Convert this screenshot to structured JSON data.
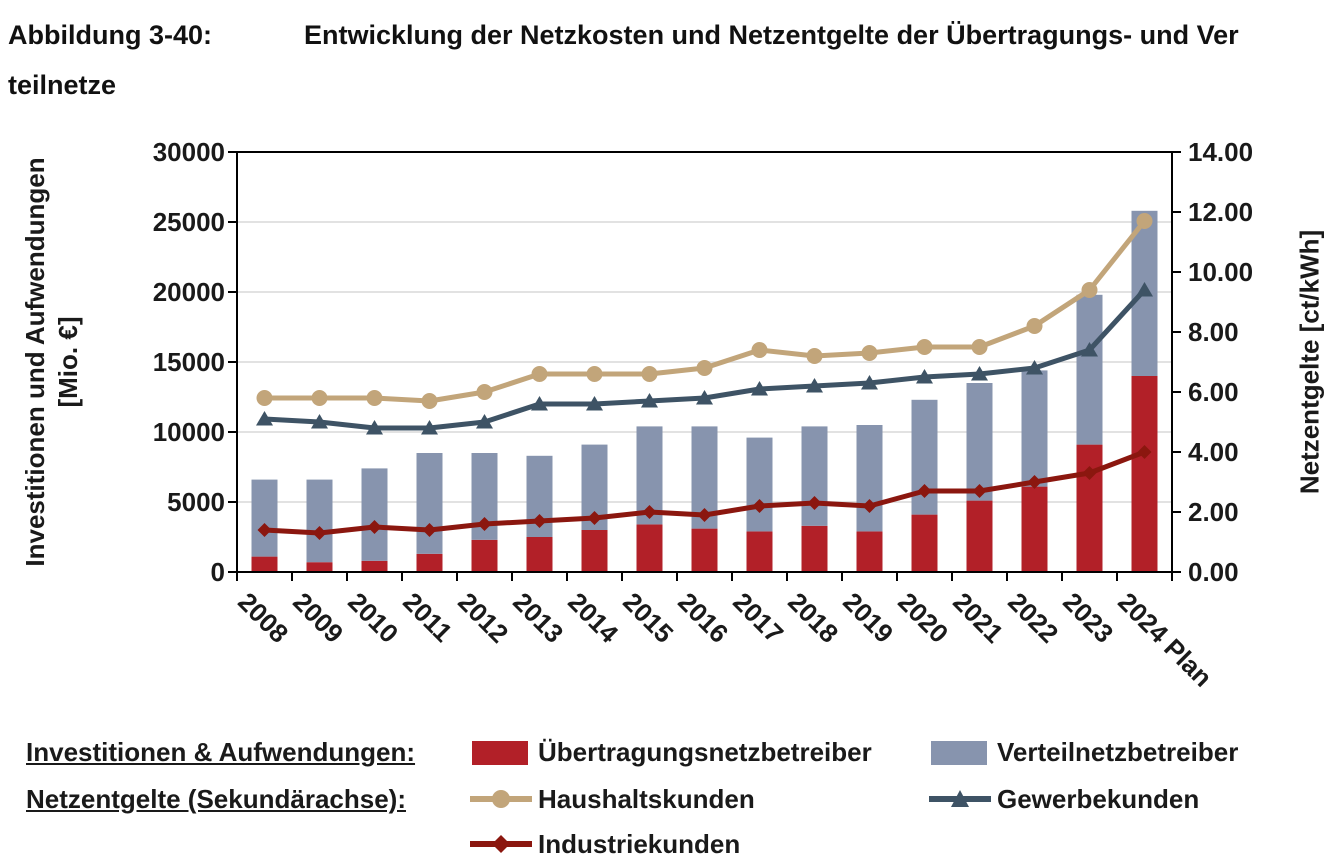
{
  "header": {
    "figure_label": "Abbildung 3-40:",
    "title_line1": "Entwicklung der Netzkosten und Netzentgelte der Übertragungs- und Ver",
    "title_line2": "teilnetze"
  },
  "legend": {
    "investments_label": "Investitionen & Aufwendungen:",
    "tariffs_label": "Netzentgelte (Sekundärachse):"
  },
  "chart_data": {
    "type": "combo: stacked bar (primary axis) + line (secondary axis)",
    "categories": [
      "2008",
      "2009",
      "2010",
      "2011",
      "2012",
      "2013",
      "2014",
      "2015",
      "2016",
      "2017",
      "2018",
      "2019",
      "2020",
      "2021",
      "2022",
      "2023",
      "2024 Plan"
    ],
    "bar_series": [
      {
        "name": "Übertragungsnetzbetreiber",
        "color": "#b22028",
        "axis": "left",
        "values": [
          1100,
          700,
          800,
          1300,
          2300,
          2500,
          3000,
          3400,
          3100,
          2900,
          3300,
          2900,
          4100,
          5100,
          6100,
          9100,
          14000
        ]
      },
      {
        "name": "Verteilnetzbetreiber",
        "color": "#8794ae",
        "axis": "left",
        "values": [
          5500,
          5900,
          6600,
          7200,
          6200,
          5800,
          6100,
          7000,
          7300,
          6700,
          7100,
          7600,
          8200,
          8400,
          8300,
          10700,
          11800
        ]
      }
    ],
    "line_series": [
      {
        "name": "Haushaltskunden",
        "color": "#c2a57a",
        "marker": "circle",
        "axis": "right",
        "values": [
          5.8,
          5.8,
          5.8,
          5.7,
          6.0,
          6.6,
          6.6,
          6.6,
          6.8,
          7.4,
          7.2,
          7.3,
          7.5,
          7.5,
          8.2,
          9.4,
          11.7
        ]
      },
      {
        "name": "Gewerbekunden",
        "color": "#3e5365",
        "marker": "triangle",
        "axis": "right",
        "values": [
          5.1,
          5.0,
          4.8,
          4.8,
          5.0,
          5.6,
          5.6,
          5.7,
          5.8,
          6.1,
          6.2,
          6.3,
          6.5,
          6.6,
          6.8,
          7.4,
          9.4
        ]
      },
      {
        "name": "Industriekunden",
        "color": "#8b170f",
        "marker": "diamond",
        "axis": "right",
        "values": [
          1.4,
          1.3,
          1.5,
          1.4,
          1.6,
          1.7,
          1.8,
          2.0,
          1.9,
          2.2,
          2.3,
          2.2,
          2.7,
          2.7,
          3.0,
          3.3,
          4.0
        ]
      }
    ],
    "left_axis": {
      "title_line1": "Investitionen und Aufwendungen",
      "title_line2": "[Mio. €]",
      "min": 0,
      "max": 30000,
      "step": 5000,
      "ticks": [
        "0",
        "5000",
        "10000",
        "15000",
        "20000",
        "25000",
        "30000"
      ]
    },
    "right_axis": {
      "title": "Netzentgelte [ct/kWh]",
      "min": 0,
      "max": 14,
      "step": 2,
      "ticks": [
        "0.00",
        "2.00",
        "4.00",
        "6.00",
        "8.00",
        "10.00",
        "12.00",
        "14.00"
      ]
    },
    "grid": "horizontal",
    "legend_position": "bottom-left",
    "colors": {
      "grid": "#d9d9d9",
      "axis": "#000000",
      "text": "#1a1a1a"
    }
  }
}
